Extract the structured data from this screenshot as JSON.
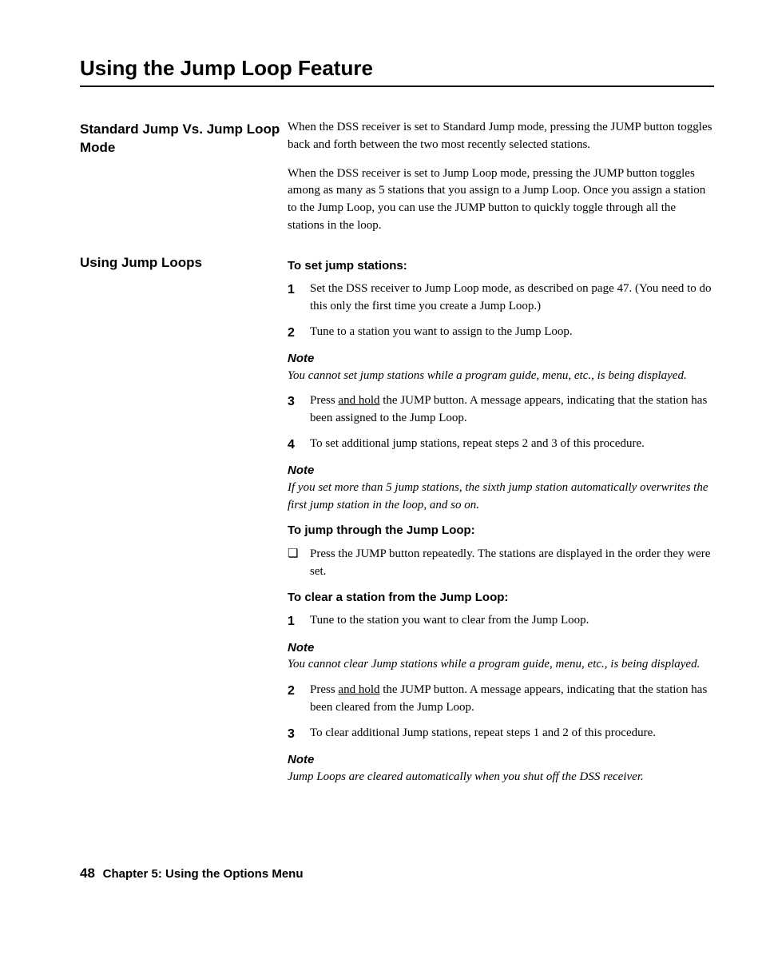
{
  "title": "Using the Jump Loop Feature",
  "section1": {
    "heading": "Standard Jump Vs. Jump Loop Mode",
    "p1": "When the DSS receiver is set to Standard Jump mode, pressing the JUMP button toggles back and forth between the two most recently selected stations.",
    "p2": "When the DSS receiver is set to Jump Loop mode, pressing the JUMP button toggles among as many as 5 stations that you assign to a Jump Loop. Once you assign a station to the Jump Loop, you can use the JUMP button to quickly toggle through all the stations in the loop."
  },
  "section2": {
    "heading": "Using Jump Loops",
    "sub1": "To set jump stations:",
    "step1": "Set the DSS receiver to Jump Loop mode, as described on page 47. (You need to do this only the first time you create a Jump Loop.)",
    "step2": "Tune to a station you want to assign to the Jump Loop.",
    "note1Head": "Note",
    "note1Body": "You cannot set jump stations while a program guide, menu, etc., is being displayed.",
    "step3a": "Press ",
    "step3u": "and hold",
    "step3b": " the JUMP button. A message appears, indicating that the station has been assigned to the Jump Loop.",
    "step4": "To set additional jump stations, repeat steps 2 and 3 of this procedure.",
    "note2Head": "Note",
    "note2Body": "If you set more than 5 jump stations, the sixth jump station automatically overwrites the first jump station in the loop, and so on.",
    "sub2": "To jump through the Jump Loop:",
    "bullet1": "Press the JUMP button repeatedly. The stations are displayed in the order they were set.",
    "sub3": "To clear a station from the Jump Loop:",
    "clear1": "Tune to the station you want to clear from the Jump Loop.",
    "note3Head": "Note",
    "note3Body": "You cannot clear Jump stations while a program guide, menu, etc., is being displayed.",
    "clear2a": "Press ",
    "clear2u": "and hold",
    "clear2b": " the JUMP button. A message appears, indicating that the station has been cleared from the Jump Loop.",
    "clear3": "To clear additional Jump stations, repeat steps 1 and 2 of this procedure.",
    "note4Head": "Note",
    "note4Body": "Jump Loops are cleared automatically when you shut off the DSS receiver."
  },
  "footer": {
    "pageNum": "48",
    "chapter": "Chapter 5: Using the Options Menu"
  },
  "nums": {
    "n1": "1",
    "n2": "2",
    "n3": "3",
    "n4": "4"
  },
  "bulletGlyph": "❏"
}
